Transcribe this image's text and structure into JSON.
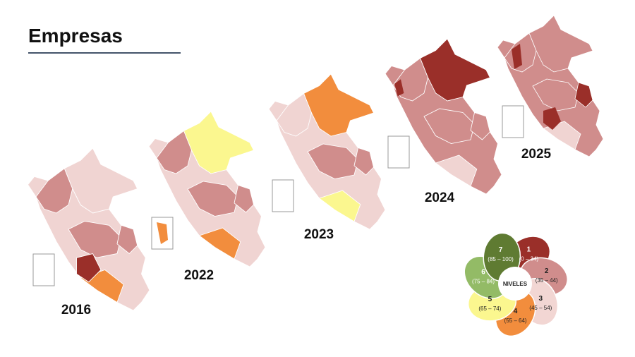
{
  "header": {
    "title": "Empresas"
  },
  "maps": [
    {
      "year": "2016"
    },
    {
      "year": "2022"
    },
    {
      "year": "2023"
    },
    {
      "year": "2024"
    },
    {
      "year": "2025"
    }
  ],
  "legend": {
    "center": "NIVELES",
    "levels": [
      {
        "level": "1",
        "range": "(0 – 34)",
        "color": "#9a2f29"
      },
      {
        "level": "2",
        "range": "(35 – 44)",
        "color": "#d08d8c"
      },
      {
        "level": "3",
        "range": "(45 – 54)",
        "color": "#f2d6d3"
      },
      {
        "level": "4",
        "range": "(55 – 64)",
        "color": "#f28d3d"
      },
      {
        "level": "5",
        "range": "(65 – 74)",
        "color": "#fbf78f"
      },
      {
        "level": "6",
        "range": "(75 – 84)",
        "color": "#93bb66"
      },
      {
        "level": "7",
        "range": "(85 – 100)",
        "color": "#5f7b32"
      }
    ]
  }
}
